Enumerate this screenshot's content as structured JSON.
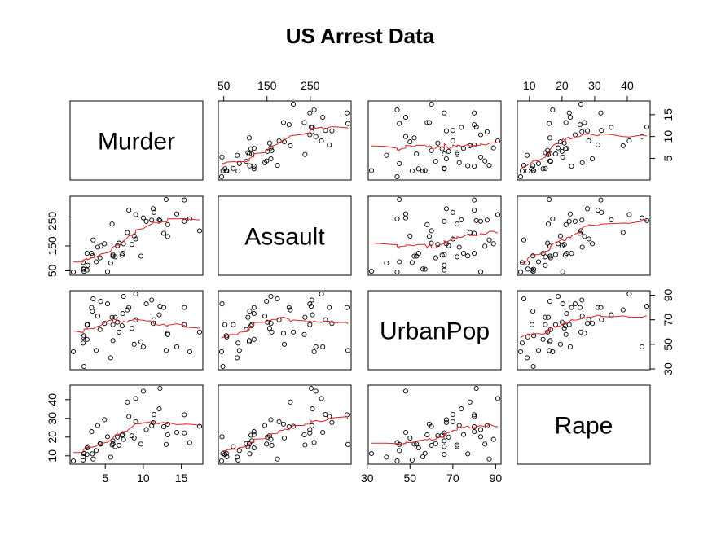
{
  "chart_data": {
    "type": "scatter",
    "kind": "scatterplot-matrix",
    "title": "US Arrest Data",
    "smoother_color": "#d22222",
    "variables": [
      {
        "name": "Murder",
        "ticks": [
          5,
          10,
          15
        ],
        "tick_labels": [
          "5",
          "10",
          "15"
        ],
        "tick_axis_side": "bottom/right"
      },
      {
        "name": "Assault",
        "ticks": [
          50,
          150,
          250
        ],
        "tick_labels": [
          "50",
          "150",
          "250"
        ],
        "tick_axis_side": "top/left"
      },
      {
        "name": "UrbanPop",
        "ticks": [
          30,
          50,
          70,
          90
        ],
        "tick_labels": [
          "30",
          "50",
          "70",
          "90"
        ],
        "tick_axis_side": "bottom/right"
      },
      {
        "name": "Rape",
        "ticks": [
          10,
          20,
          30,
          40
        ],
        "tick_labels": [
          "10",
          "20",
          "30",
          "40"
        ],
        "tick_axis_side": "top/left"
      }
    ],
    "columns": {
      "Murder": [
        13.2,
        10.0,
        8.1,
        8.8,
        9.0,
        7.9,
        3.3,
        5.9,
        15.4,
        17.4,
        5.3,
        2.6,
        10.4,
        7.2,
        2.2,
        6.0,
        9.7,
        15.4,
        2.1,
        11.3,
        4.4,
        12.1,
        2.7,
        16.1,
        9.0,
        6.0,
        4.3,
        12.2,
        2.1,
        7.4,
        11.4,
        11.1,
        13.0,
        0.8,
        7.3,
        6.6,
        4.9,
        6.3,
        3.4,
        14.4,
        3.8,
        13.2,
        12.7,
        3.2,
        2.2,
        8.5,
        4.0,
        5.7,
        2.6,
        6.8
      ],
      "Assault": [
        236,
        263,
        294,
        190,
        276,
        204,
        110,
        238,
        335,
        211,
        46,
        120,
        249,
        113,
        56,
        115,
        109,
        249,
        83,
        300,
        149,
        255,
        72,
        259,
        178,
        109,
        102,
        252,
        57,
        159,
        285,
        254,
        337,
        45,
        120,
        151,
        159,
        106,
        174,
        279,
        86,
        188,
        201,
        120,
        48,
        156,
        145,
        81,
        53,
        161
      ],
      "UrbanPop": [
        58,
        48,
        80,
        50,
        91,
        78,
        77,
        72,
        80,
        60,
        83,
        54,
        83,
        65,
        57,
        66,
        52,
        66,
        51,
        67,
        85,
        74,
        66,
        44,
        70,
        53,
        62,
        81,
        56,
        89,
        70,
        86,
        45,
        44,
        75,
        68,
        67,
        72,
        87,
        48,
        45,
        59,
        80,
        80,
        32,
        63,
        73,
        39,
        66,
        60
      ],
      "Rape": [
        21.2,
        44.5,
        31.0,
        19.5,
        40.6,
        38.7,
        11.1,
        15.8,
        31.9,
        25.8,
        20.2,
        14.2,
        24.0,
        21.0,
        11.3,
        18.0,
        16.3,
        22.2,
        7.8,
        27.8,
        16.3,
        35.1,
        14.9,
        17.1,
        28.2,
        16.4,
        16.5,
        46.0,
        9.5,
        18.8,
        32.1,
        26.1,
        16.1,
        7.3,
        21.4,
        20.0,
        29.3,
        14.9,
        8.3,
        22.5,
        12.8,
        26.9,
        25.5,
        22.9,
        11.2,
        20.7,
        26.2,
        9.3,
        10.8,
        15.6
      ]
    }
  }
}
